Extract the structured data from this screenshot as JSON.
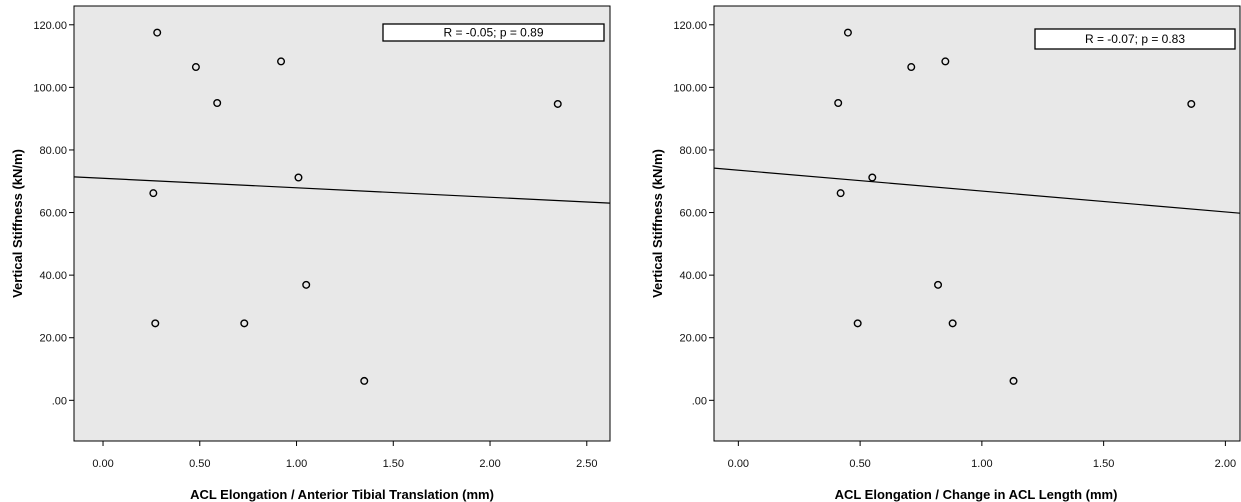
{
  "chart_data": [
    {
      "type": "scatter",
      "title": "",
      "xlabel": "ACL Elongation / Anterior Tibial Translation (mm)",
      "ylabel": "Vertical Stiffness (kN/m)",
      "xlim": [
        -0.15,
        2.62
      ],
      "ylim": [
        -13,
        126
      ],
      "x_ticks": [
        0,
        0.5,
        1.0,
        1.5,
        2.0,
        2.5
      ],
      "x_tick_labels": [
        "0.00",
        "0.50",
        "1.00",
        "1.50",
        "2.00",
        "2.50"
      ],
      "y_ticks": [
        0,
        20,
        40,
        60,
        80,
        100,
        120
      ],
      "y_tick_labels": [
        ".00",
        "20.00",
        "40.00",
        "60.00",
        "80.00",
        "100.00",
        "120.00"
      ],
      "annotation": "R = -0.05; p = 0.89",
      "legend_placement": "top-right",
      "grid": false,
      "background": "#e8e8e8",
      "points": [
        {
          "x": 0.28,
          "y": 117.5
        },
        {
          "x": 0.48,
          "y": 106.5
        },
        {
          "x": 0.59,
          "y": 95.0
        },
        {
          "x": 0.92,
          "y": 108.3
        },
        {
          "x": 2.35,
          "y": 94.7
        },
        {
          "x": 1.01,
          "y": 71.2
        },
        {
          "x": 0.26,
          "y": 66.2
        },
        {
          "x": 1.05,
          "y": 36.9
        },
        {
          "x": 0.27,
          "y": 24.6
        },
        {
          "x": 0.73,
          "y": 24.6
        },
        {
          "x": 1.35,
          "y": 6.2
        }
      ],
      "fit_line": {
        "x": [
          -0.15,
          2.62
        ],
        "y": [
          71.4,
          63.0
        ]
      }
    },
    {
      "type": "scatter",
      "title": "",
      "xlabel": "ACL Elongation / Change in ACL Length (mm)",
      "ylabel": "Vertical Stiffness (kN/m)",
      "xlim": [
        -0.1,
        2.06
      ],
      "ylim": [
        -13,
        126
      ],
      "x_ticks": [
        0,
        0.5,
        1.0,
        1.5,
        2.0
      ],
      "x_tick_labels": [
        "0.00",
        "0.50",
        "1.00",
        "1.50",
        "2.00"
      ],
      "y_ticks": [
        0,
        20,
        40,
        60,
        80,
        100,
        120
      ],
      "y_tick_labels": [
        ".00",
        "20.00",
        "40.00",
        "60.00",
        "80.00",
        "100.00",
        "120.00"
      ],
      "annotation": "R = -0.07; p = 0.83",
      "legend_placement": "top-right",
      "grid": false,
      "background": "#e8e8e8",
      "points": [
        {
          "x": 0.45,
          "y": 117.5
        },
        {
          "x": 0.71,
          "y": 106.5
        },
        {
          "x": 0.85,
          "y": 108.3
        },
        {
          "x": 0.41,
          "y": 95.0
        },
        {
          "x": 1.86,
          "y": 94.7
        },
        {
          "x": 0.55,
          "y": 71.2
        },
        {
          "x": 0.42,
          "y": 66.2
        },
        {
          "x": 0.82,
          "y": 36.9
        },
        {
          "x": 0.49,
          "y": 24.6
        },
        {
          "x": 0.88,
          "y": 24.6
        },
        {
          "x": 1.13,
          "y": 6.2
        }
      ],
      "fit_line": {
        "x": [
          -0.1,
          2.06
        ],
        "y": [
          74.2,
          59.8
        ]
      }
    }
  ]
}
